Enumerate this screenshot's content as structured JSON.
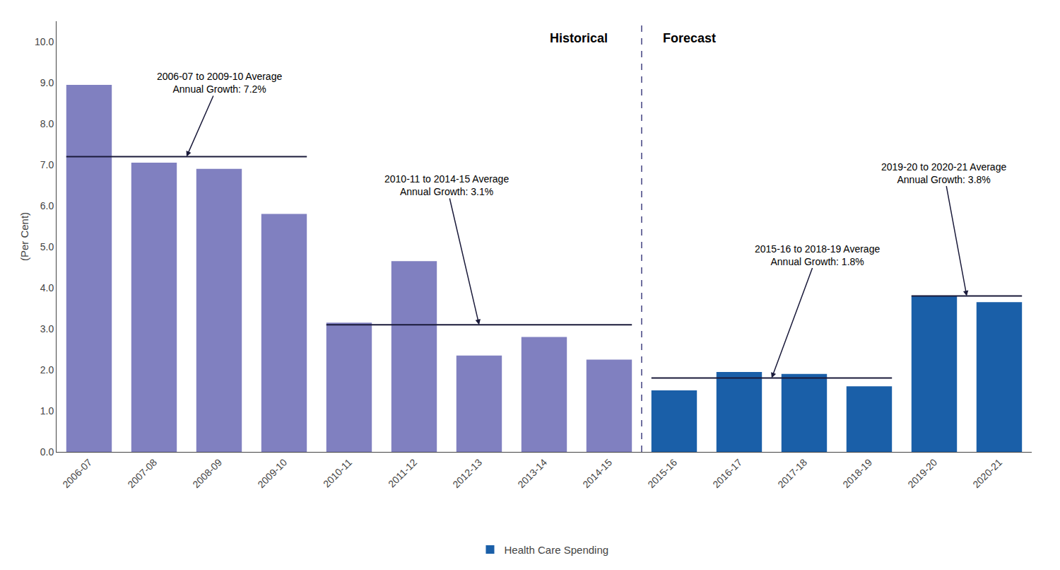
{
  "chart_data": {
    "type": "bar",
    "categories": [
      "2006-07",
      "2007-08",
      "2008-09",
      "2009-10",
      "2010-11",
      "2011-12",
      "2012-13",
      "2013-14",
      "2014-15",
      "2015-16",
      "2016-17",
      "2017-18",
      "2018-19",
      "2019-20",
      "2020-21"
    ],
    "values": [
      8.95,
      7.05,
      6.9,
      5.8,
      3.15,
      4.65,
      2.35,
      2.8,
      2.25,
      1.5,
      1.95,
      1.9,
      1.6,
      3.8,
      3.65
    ],
    "colors": [
      "#8080c0",
      "#8080c0",
      "#8080c0",
      "#8080c0",
      "#8080c0",
      "#8080c0",
      "#8080c0",
      "#8080c0",
      "#8080c0",
      "#1a5fa8",
      "#1a5fa8",
      "#1a5fa8",
      "#1a5fa8",
      "#1a5fa8",
      "#1a5fa8"
    ],
    "forecast_start": "2015-16",
    "historical_label": "Historical",
    "forecast_label": "Forecast",
    "divider_color": "#404080",
    "legend_label": "Health Care Spending",
    "legend": "bottom",
    "avg_lines": [
      {
        "start": "2006-07",
        "end": "2009-10",
        "value": 7.2,
        "color": "#1a1a3a",
        "annotation": "2006-07 to 2009-10 Average\nAnnual Growth: 7.2%"
      },
      {
        "start": "2010-11",
        "end": "2014-15",
        "value": 3.1,
        "color": "#1a1a3a",
        "annotation": "2010-11 to 2014-15 Average\nAnnual Growth: 3.1%"
      },
      {
        "start": "2015-16",
        "end": "2018-19",
        "value": 1.8,
        "color": "#1a1a3a",
        "annotation": "2015-16 to 2018-19 Average\nAnnual Growth: 1.8%"
      },
      {
        "start": "2019-20",
        "end": "2020-21",
        "value": 3.8,
        "color": "#1a1a3a",
        "annotation": "2019-20 to 2020-21 Average\nAnnual Growth: 3.8%"
      }
    ],
    "arrow_color": "#1a1a3a",
    "ylabel": "(Per Cent)",
    "ylim": [
      0,
      10.5
    ],
    "yticks": [
      {
        "value": 0,
        "label": "0.0"
      },
      {
        "value": 1,
        "label": "1.0"
      },
      {
        "value": 2,
        "label": "2.0"
      },
      {
        "value": 3,
        "label": "3.0"
      },
      {
        "value": 4,
        "label": "4.0"
      },
      {
        "value": 5,
        "label": "5.0"
      },
      {
        "value": 6,
        "label": "6.0"
      },
      {
        "value": 7,
        "label": "7.0"
      },
      {
        "value": 8,
        "label": "8.0"
      },
      {
        "value": 9,
        "label": "9.0"
      },
      {
        "value": 10,
        "label": "10.0"
      }
    ],
    "grid": false
  }
}
